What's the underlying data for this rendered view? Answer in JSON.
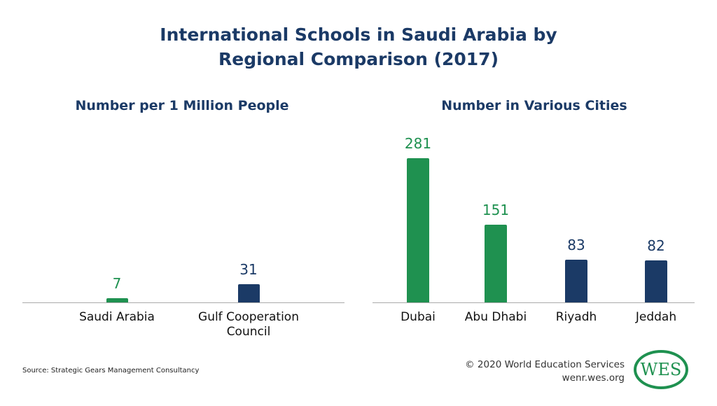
{
  "title": "International Schools in Saudi Arabia by Regional Comparison (2017)",
  "source": "Source: Strategic Gears Management Consultancy",
  "credit": "© 2020 World Education Services",
  "url": "wenr.wes.org",
  "logo": "WES",
  "chart_data": [
    {
      "type": "bar",
      "title": "Number per 1 Million People",
      "categories": [
        "Saudi Arabia",
        "Gulf Cooperation Council"
      ],
      "values": [
        7,
        31
      ],
      "colors": [
        "#1f9150",
        "#1b3a66"
      ]
    },
    {
      "type": "bar",
      "title": "Number in Various Cities",
      "categories": [
        "Dubai",
        "Abu Dhabi",
        "Riyadh",
        "Jeddah"
      ],
      "values": [
        281,
        151,
        83,
        82
      ],
      "colors": [
        "#1f9150",
        "#1f9150",
        "#1b3a66",
        "#1b3a66"
      ]
    }
  ]
}
